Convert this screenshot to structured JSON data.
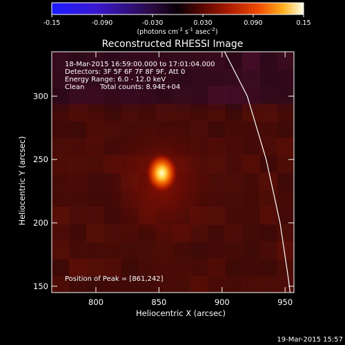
{
  "chart_data": {
    "type": "heatmap",
    "title": "Reconstructed RHESSI Image",
    "xlabel": "Heliocentric X (arcsec)",
    "ylabel": "Heliocentric Y (arcsec)",
    "xlim": [
      765,
      957
    ],
    "ylim": [
      145,
      335
    ],
    "xticks": [
      800,
      850,
      900,
      950
    ],
    "yticks": [
      150,
      200,
      250,
      300
    ],
    "colorbar": {
      "min": -0.15,
      "max": 0.15,
      "ticks": [
        "-0.15",
        "-0.090",
        "-0.030",
        "0.030",
        "0.090",
        "0.15"
      ],
      "unit_label": "(photons cm",
      "unit_exp1": "-2",
      "unit_mid": " s",
      "unit_exp2": "-1",
      "unit_mid2": " asec",
      "unit_exp3": "-2",
      "unit_end": ")"
    },
    "annotations": {
      "line1": "18-Mar-2015 16:59:00.000 to 17:01:04.000",
      "line2": "Detectors: 3F 5F 6F 7F 8F 9F, Att 0",
      "line3": "Energy Range: 6.0 - 12.0 keV",
      "line4_a": "Clean",
      "line4_b": "Total counts: 8.94E+04",
      "peak": "Position of Peak = [861,242]"
    },
    "peak": {
      "x": 861,
      "y": 242,
      "value": 0.15
    },
    "background_level": 0.018,
    "limb_curve": [
      [
        902,
        335
      ],
      [
        920,
        300
      ],
      [
        935,
        250
      ],
      [
        946,
        200
      ],
      [
        952,
        160
      ],
      [
        954,
        145
      ]
    ],
    "footer_date": "19-Mar-2015 15:57"
  }
}
